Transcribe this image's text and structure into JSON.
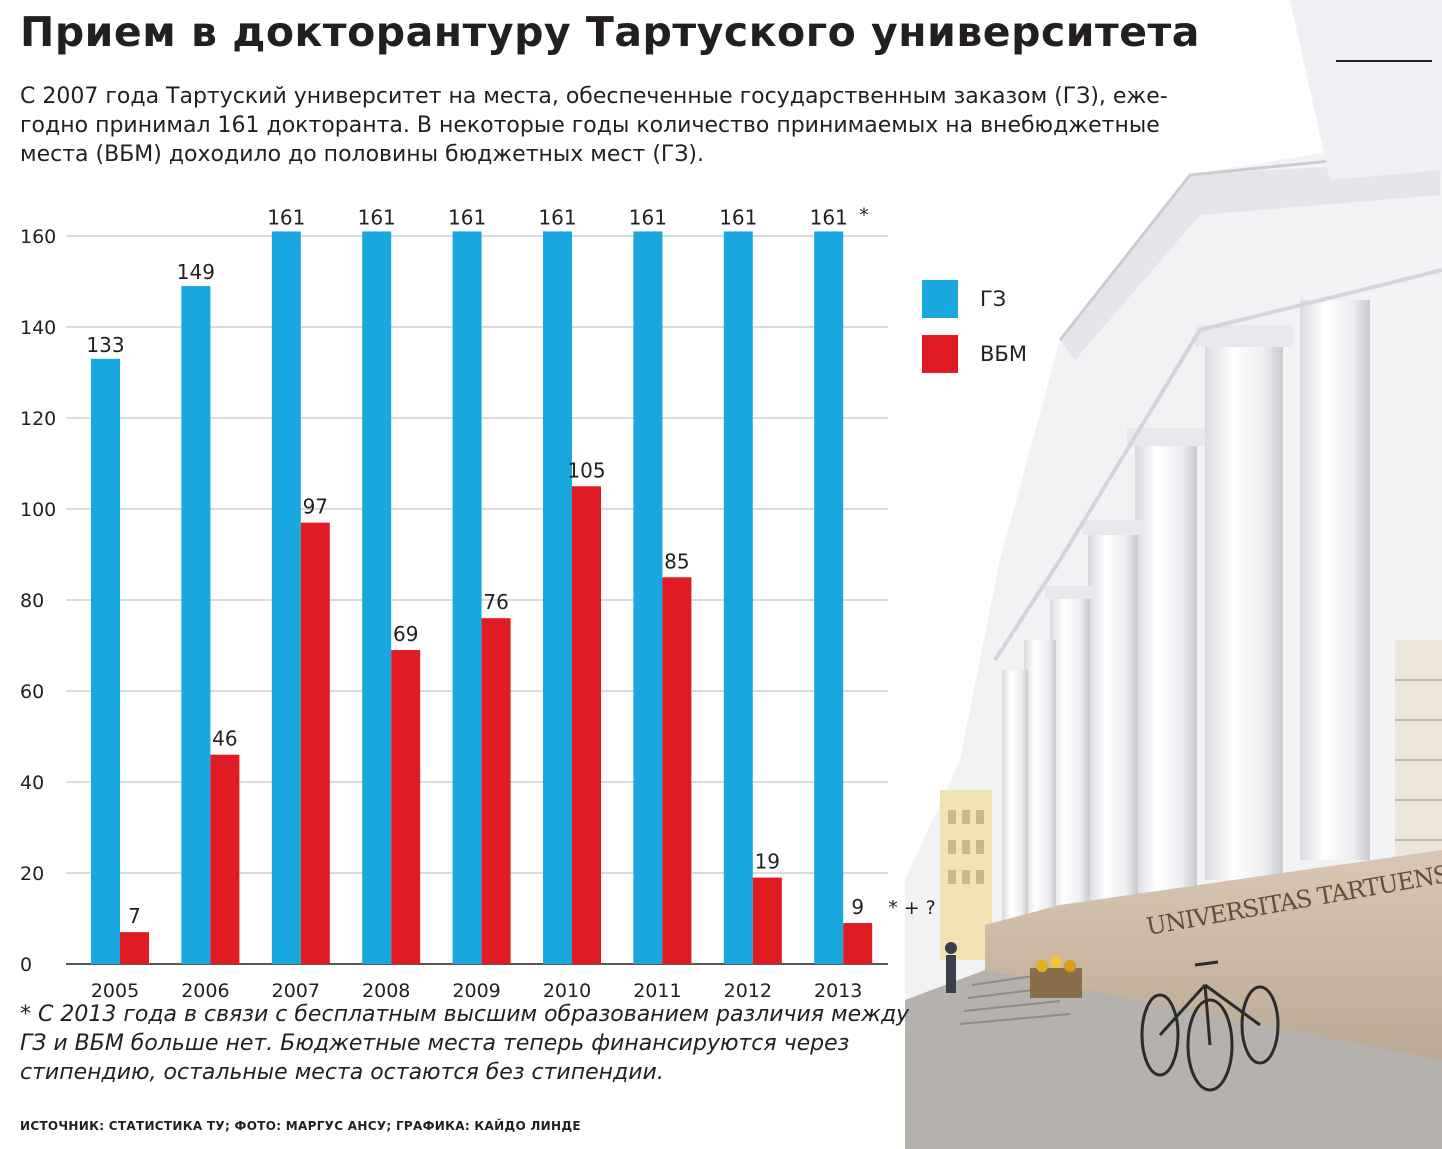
{
  "header": {
    "title": "Прием в докторантуру Тартуского университета",
    "lead_lines": [
      "С 2007 года Тартуский университет на места, обеспеченные государственным заказом (ГЗ), еже-",
      "годно принимал 161 докторанта. В некоторые годы количество принимаемых на внебюджетные",
      "места (ВБМ) доходило до половины бюджетных мест (ГЗ)."
    ]
  },
  "legend": [
    {
      "label": "ГЗ",
      "color": "#19a7e0"
    },
    {
      "label": "ВБМ",
      "color": "#e01b24"
    }
  ],
  "chart_data": {
    "type": "bar",
    "title": "",
    "xlabel": "",
    "ylabel": "",
    "categories": [
      "2005",
      "2006",
      "2007",
      "2008",
      "2009",
      "2010",
      "2011",
      "2012",
      "2013"
    ],
    "series": [
      {
        "name": "ГЗ",
        "color": "#19a7e0",
        "values": [
          133,
          149,
          161,
          161,
          161,
          161,
          161,
          161,
          161
        ],
        "labels": [
          "133",
          "149",
          "161",
          "161",
          "161",
          "161",
          "161",
          "161",
          "161"
        ]
      },
      {
        "name": "ВБМ",
        "color": "#e01b24",
        "values": [
          7,
          46,
          97,
          69,
          76,
          105,
          85,
          19,
          9
        ],
        "labels": [
          "7",
          "46",
          "97",
          "69",
          "76",
          "105",
          "85",
          "19",
          "9"
        ]
      }
    ],
    "annotations": [
      {
        "category": "2013",
        "series": "ГЗ",
        "text": "*"
      },
      {
        "category": "2013",
        "series": "ВБМ",
        "text": "* + ?"
      }
    ],
    "ylim": [
      0,
      160
    ],
    "yticks": [
      0,
      20,
      40,
      60,
      80,
      100,
      120,
      140,
      160
    ],
    "grid": true,
    "legend_position": "right"
  },
  "footnote_lines": [
    "* С 2013 года в связи с бесплатным высшим образованием различия между",
    "ГЗ и ВБМ больше нет. Бюджетные места теперь финансируются через",
    "стипендию, остальные места остаются без стипендии."
  ],
  "photo": {
    "subject": "main building of the University of Tartu",
    "facade_inscription": "UNIVERSITAS TARTUENSIS"
  },
  "source": "ИСТОЧНИК: СТАТИСТИКА ТУ; ФОТО: МАРГУС АНСУ; ГРАФИКА: КАЙДО ЛИНДЕ"
}
